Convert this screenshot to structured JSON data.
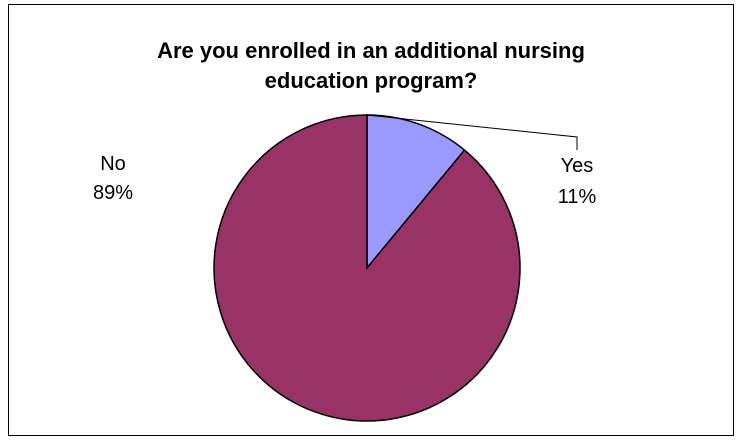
{
  "chart_data": {
    "type": "pie",
    "title_lines": [
      "Are you enrolled in an additional nursing",
      "education program?"
    ],
    "slices": [
      {
        "label": "Yes",
        "percent_label": "11%",
        "value": 11,
        "color": "#9999ff"
      },
      {
        "label": "No",
        "percent_label": "89%",
        "value": 89,
        "color": "#993366"
      }
    ],
    "start_angle_deg": 0,
    "direction": "clockwise"
  }
}
